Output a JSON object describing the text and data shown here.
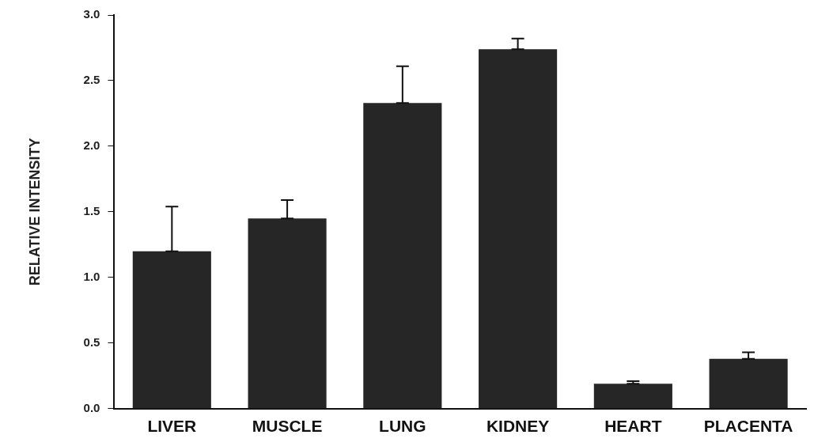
{
  "chart_data": {
    "type": "bar",
    "ylabel": "RELATIVE INTENSITY",
    "categories": [
      "LIVER",
      "MUSCLE",
      "LUNG",
      "KIDNEY",
      "HEART",
      "PLACENTA"
    ],
    "values": [
      1.2,
      1.45,
      2.33,
      2.74,
      0.19,
      0.38
    ],
    "errors": [
      [
        1.2,
        1.54
      ],
      [
        1.45,
        1.59
      ],
      [
        2.33,
        2.61
      ],
      [
        2.74,
        2.82
      ],
      [
        0.19,
        0.21
      ],
      [
        0.38,
        0.43
      ]
    ],
    "color": "#262626",
    "ylim": [
      0,
      3
    ],
    "yticks": [
      {
        "value": 0,
        "label": "0.0"
      },
      {
        "value": 0.5,
        "label": "0.5"
      },
      {
        "value": 1,
        "label": "1.0"
      },
      {
        "value": 1.5,
        "label": "1.5"
      },
      {
        "value": 2,
        "label": "2.0"
      },
      {
        "value": 2.5,
        "label": "2.5"
      },
      {
        "value": 3,
        "label": "3.0"
      }
    ],
    "grid": false,
    "legend": false
  }
}
